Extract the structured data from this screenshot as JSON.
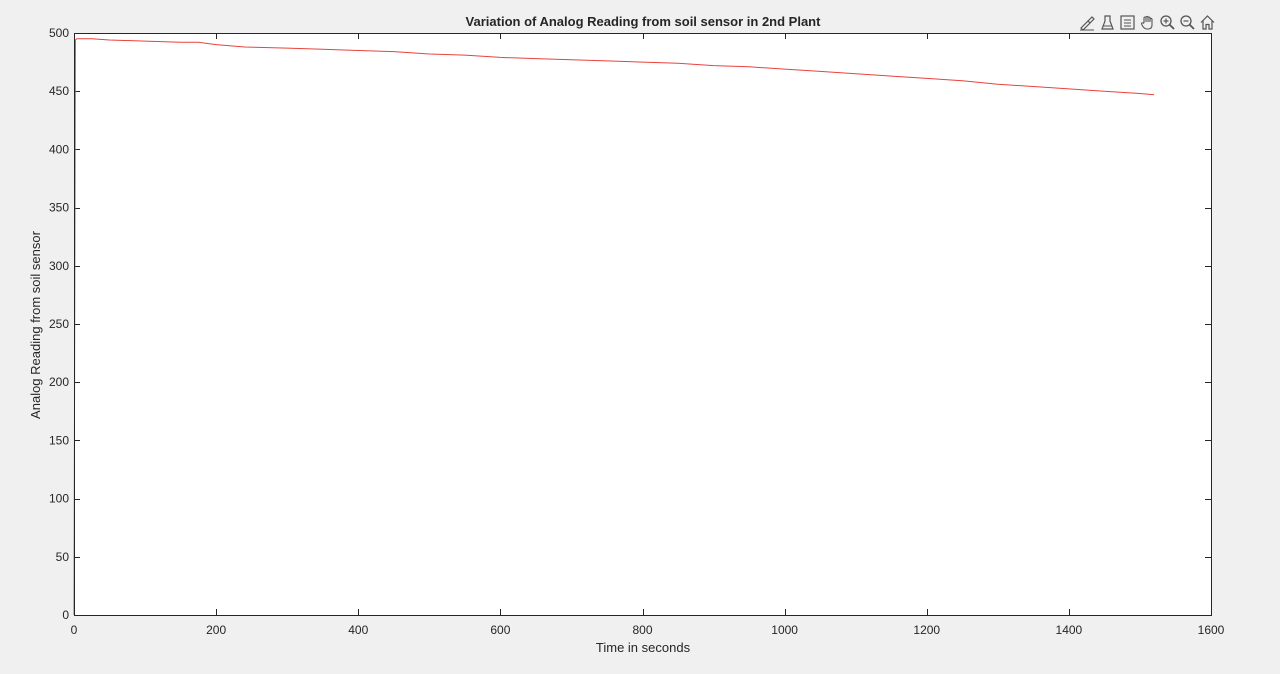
{
  "toolbar": {
    "buttons": [
      {
        "name": "edit-plot-button",
        "icon": "brush-icon"
      },
      {
        "name": "data-cursor-button",
        "icon": "datatip-icon"
      },
      {
        "name": "insert-legend-button",
        "icon": "legend-icon"
      },
      {
        "name": "pan-button",
        "icon": "hand-icon"
      },
      {
        "name": "zoom-in-button",
        "icon": "zoom-in-icon"
      },
      {
        "name": "zoom-out-button",
        "icon": "zoom-out-icon"
      },
      {
        "name": "restore-view-button",
        "icon": "home-icon"
      }
    ]
  },
  "chart_data": {
    "type": "line",
    "title": "Variation of Analog Reading from soil sensor in 2nd Plant",
    "xlabel": "Time in seconds",
    "ylabel": "Analog Reading from soil sensor",
    "xlim": [
      0,
      1600
    ],
    "ylim": [
      0,
      500
    ],
    "xticks": [
      0,
      200,
      400,
      600,
      800,
      1000,
      1200,
      1400,
      1600
    ],
    "yticks": [
      0,
      50,
      100,
      150,
      200,
      250,
      300,
      350,
      400,
      450,
      500
    ],
    "grid": false,
    "line_color": "#e8433d",
    "series": [
      {
        "x": [
          0,
          2,
          4,
          25,
          50,
          100,
          150,
          175,
          200,
          240,
          300,
          350,
          400,
          450,
          500,
          550,
          600,
          650,
          700,
          750,
          800,
          850,
          900,
          950,
          1000,
          1050,
          1100,
          1150,
          1200,
          1250,
          1300,
          1350,
          1400,
          1450,
          1500,
          1520
        ],
        "y": [
          0,
          494,
          495,
          495,
          494,
          493,
          492,
          492,
          490,
          488,
          487,
          486,
          485,
          484,
          482,
          481,
          479,
          478,
          477,
          476,
          475,
          474,
          472,
          471,
          469,
          467,
          465,
          463,
          461,
          459,
          456,
          454,
          452,
          450,
          448,
          447
        ]
      }
    ]
  }
}
